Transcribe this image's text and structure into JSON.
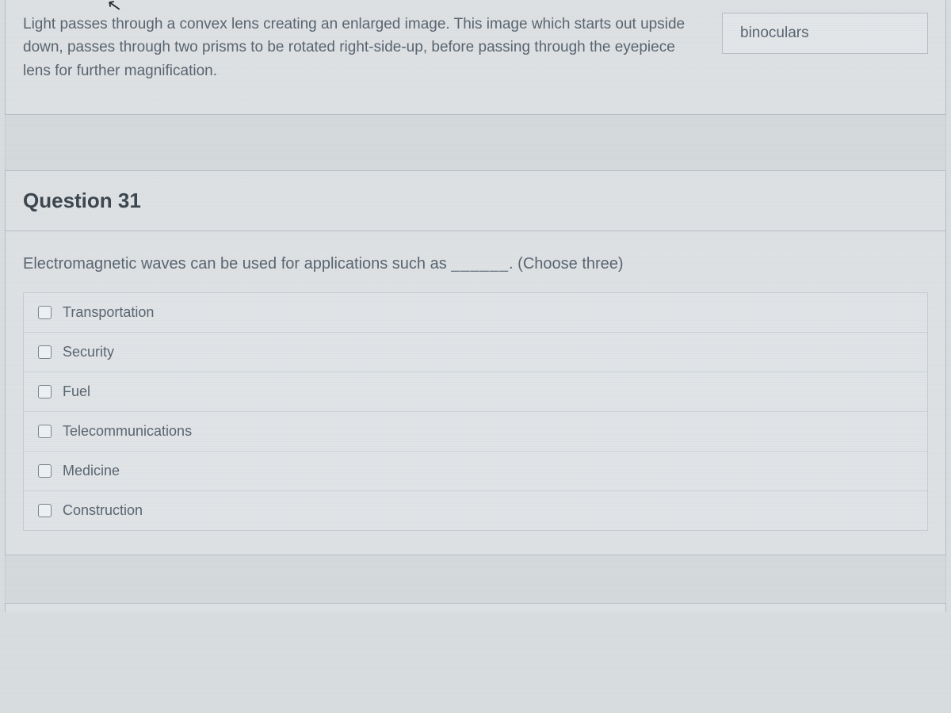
{
  "previous_question": {
    "description": "Light passes through a convex lens creating an enlarged image. This image which starts out upside down, passes through two prisms to be rotated right-side-up, before passing through the eyepiece lens for further magnification.",
    "answer_value": "binoculars"
  },
  "question": {
    "heading": "Question 31",
    "prompt_prefix": "Electromagnetic waves can be used for applications such as ",
    "blank": "______",
    "prompt_suffix": ". (Choose three)",
    "options": [
      {
        "label": "Transportation",
        "checked": false
      },
      {
        "label": "Security",
        "checked": false
      },
      {
        "label": "Fuel",
        "checked": false
      },
      {
        "label": "Telecommunications",
        "checked": false
      },
      {
        "label": "Medicine",
        "checked": false
      },
      {
        "label": "Construction",
        "checked": false
      }
    ]
  },
  "colors": {
    "page_bg": "#d8dde0",
    "card_bg": "#dde1e4",
    "border": "#b8bec4",
    "text": "#5a6570",
    "heading": "#3d4750"
  }
}
